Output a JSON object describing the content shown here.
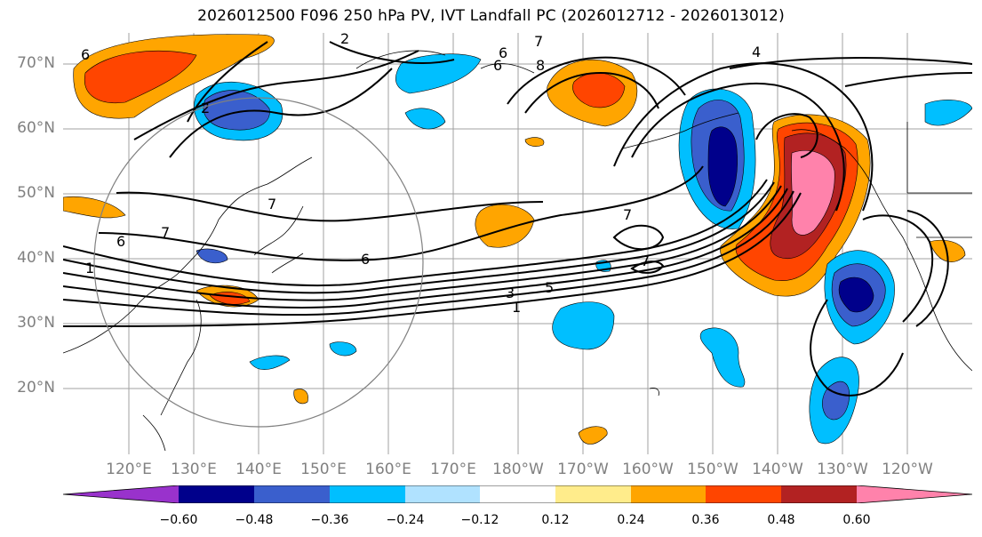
{
  "title": "2026012500 F096 250 hPa PV, IVT Landfall PC (2026012712 - 2026013012)",
  "map": {
    "lat_labels": [
      "70°N",
      "60°N",
      "50°N",
      "40°N",
      "30°N",
      "20°N"
    ],
    "lon_labels": [
      "120°E",
      "130°E",
      "140°E",
      "150°E",
      "160°E",
      "170°E",
      "180°W",
      "170°W",
      "160°W",
      "150°W",
      "140°W",
      "130°W",
      "120°W"
    ],
    "contour_labels": [
      "2",
      "7",
      "6",
      "8",
      "7",
      "4",
      "6",
      "7",
      "6",
      "5",
      "3",
      "1",
      "1",
      "6",
      "7",
      "7",
      "6",
      "2"
    ],
    "grid_color": "#a0a0a0",
    "circle_color": "#808080"
  },
  "colorbar": {
    "colors": [
      "#9932CC",
      "#00008B",
      "#3A5FCD",
      "#00BFFF",
      "#B0E2FF",
      "#FFFFFF",
      "#FFEC8B",
      "#FFA500",
      "#FF4500",
      "#B22222",
      "#FF82AB"
    ],
    "ticks": [
      "−0.60",
      "−0.48",
      "−0.36",
      "−0.24",
      "−0.12",
      "0.12",
      "0.24",
      "0.36",
      "0.48",
      "0.60"
    ]
  }
}
